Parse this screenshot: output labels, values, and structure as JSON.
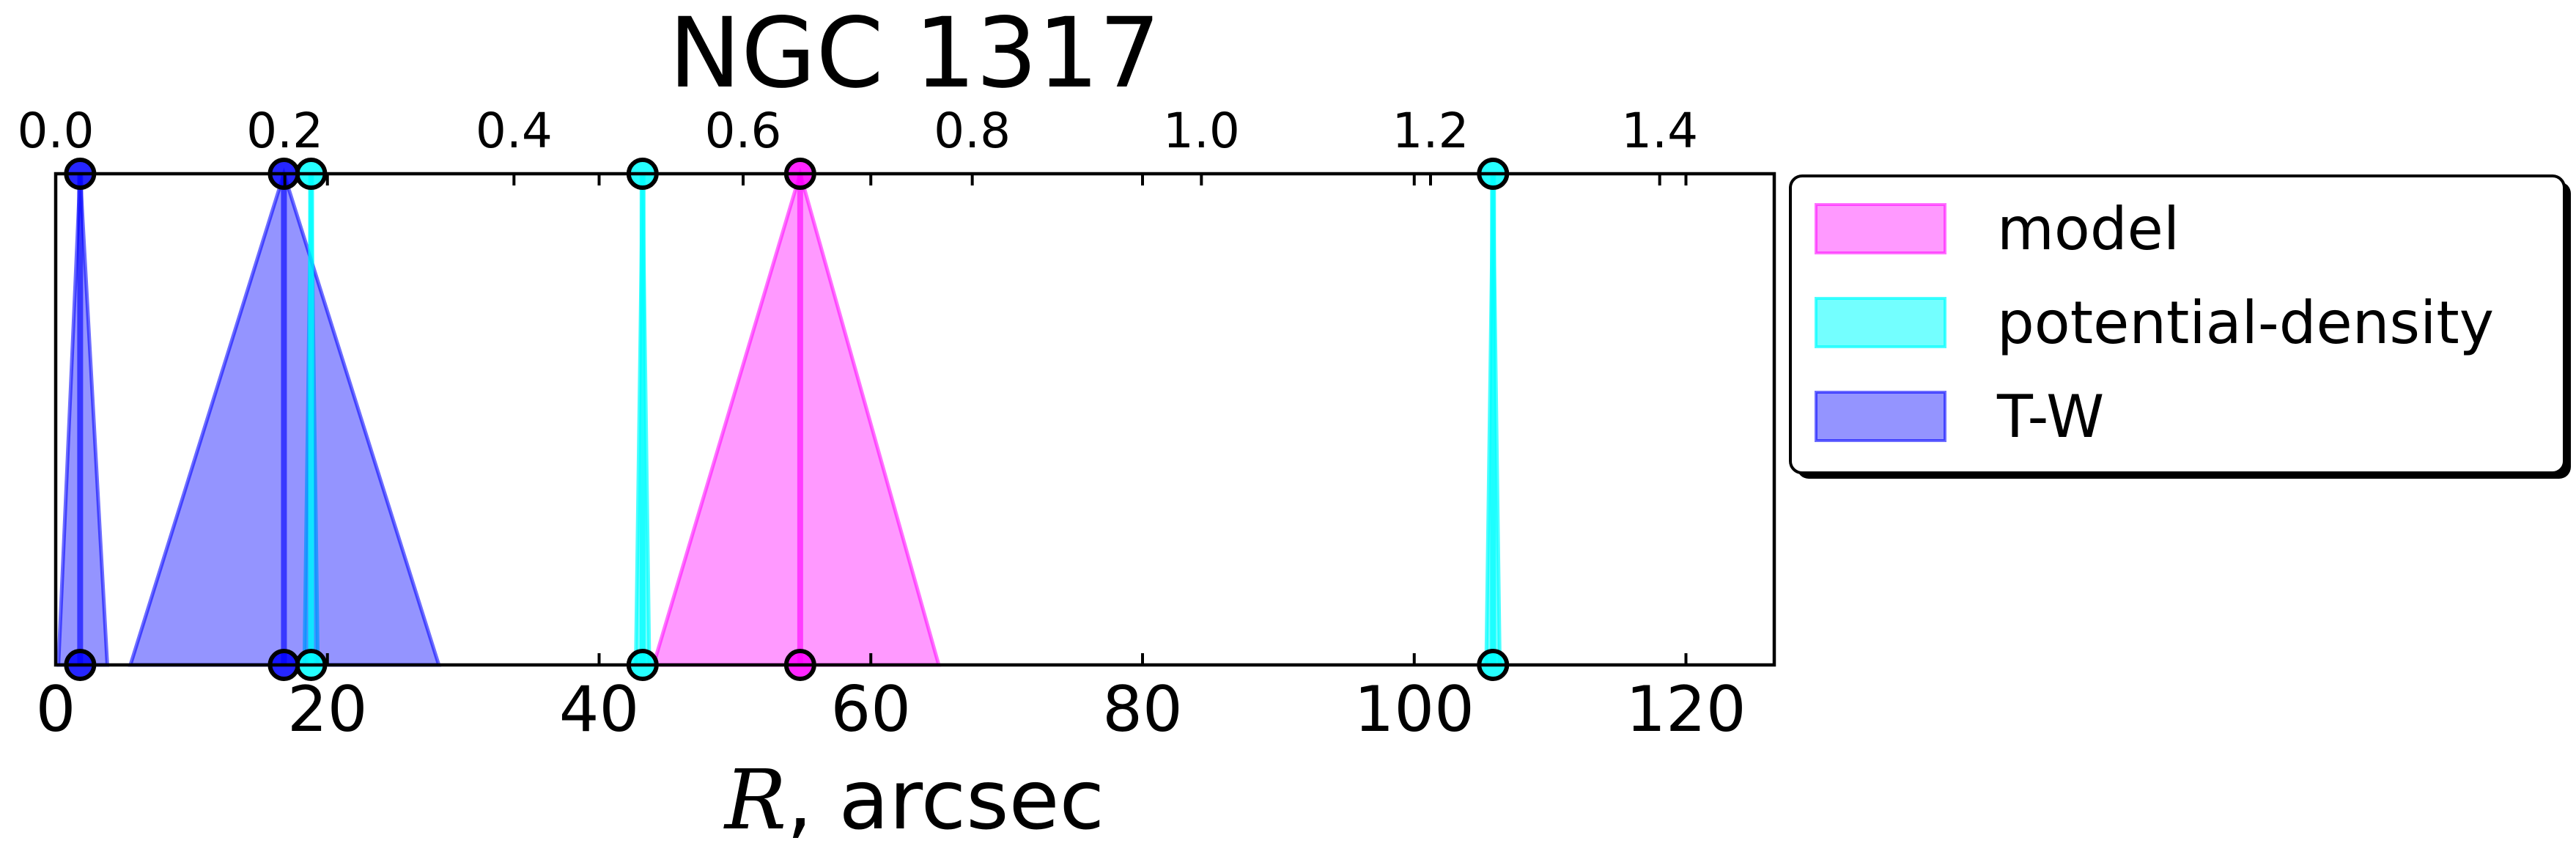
{
  "chart_data": {
    "type": "area",
    "title": "NGC 1317",
    "xlabel_symbol": "R",
    "xlabel_unit": ", arcsec",
    "xlim": [
      0,
      126.5
    ],
    "xticks": [
      0,
      20,
      40,
      60,
      80,
      100,
      120
    ],
    "xtick_labels": [
      "0",
      "20",
      "40",
      "60",
      "80",
      "100",
      "120"
    ],
    "secondary_xaxis": {
      "position": "top",
      "xlim": [
        0,
        1.5
      ],
      "xticks": [
        0.0,
        0.2,
        0.4,
        0.6,
        0.8,
        1.0,
        1.2,
        1.4
      ],
      "xtick_labels": [
        "0.0",
        "0.2",
        "0.4",
        "0.6",
        "0.8",
        "1.0",
        "1.2",
        "1.4"
      ]
    },
    "ylim": [
      0,
      1
    ],
    "grid": false,
    "legend_position": "outside-right",
    "series": [
      {
        "name": "model",
        "color": "#ff00ff",
        "alpha": 0.4,
        "markers": [
          54.8
        ],
        "triangles": [
          {
            "center": 54.8,
            "low": 44.0,
            "high": 65.0
          }
        ]
      },
      {
        "name": "potential-density",
        "color": "#00ffff",
        "alpha": 0.55,
        "markers": [
          18.8,
          43.2,
          105.8
        ],
        "triangles": [
          {
            "center": 18.8,
            "low": 18.3,
            "high": 19.3
          },
          {
            "center": 43.2,
            "low": 42.7,
            "high": 43.7
          },
          {
            "center": 105.8,
            "low": 105.3,
            "high": 106.3
          }
        ]
      },
      {
        "name": "T-W",
        "color": "#0000ff",
        "alpha": 0.42,
        "markers": [
          1.8,
          16.8
        ],
        "triangles": [
          {
            "center": 1.8,
            "low": 0.2,
            "high": 3.8
          },
          {
            "center": 16.8,
            "low": 5.5,
            "high": 28.2
          }
        ]
      }
    ]
  }
}
